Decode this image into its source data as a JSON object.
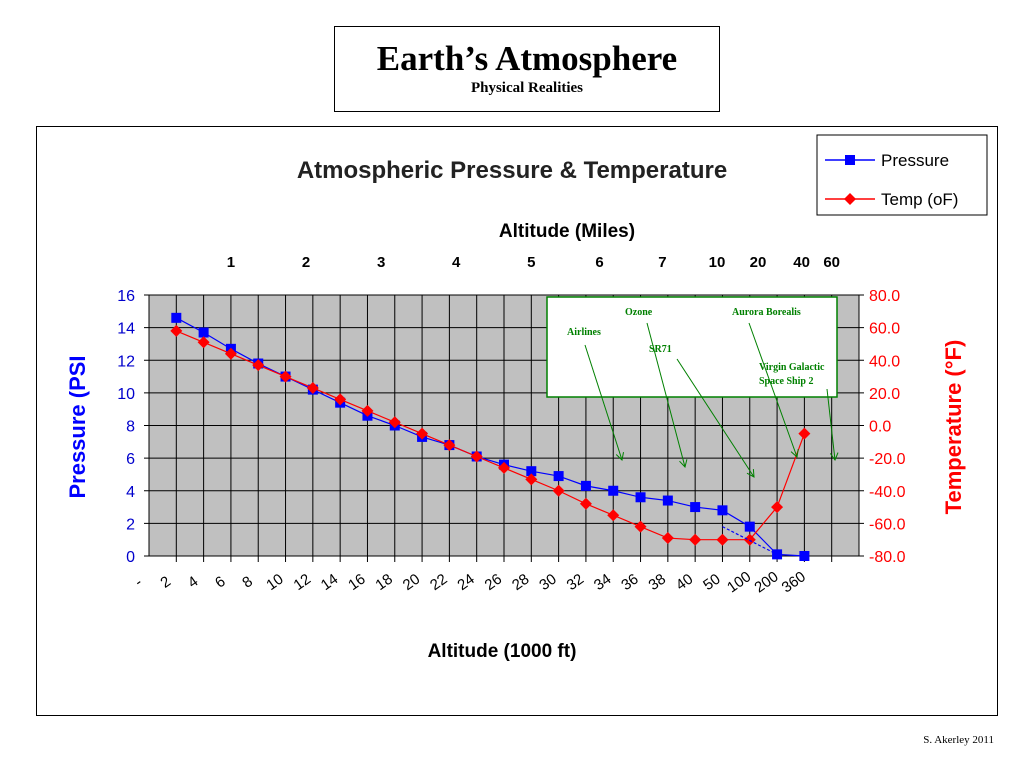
{
  "slide": {
    "title": "Earth’s Atmosphere",
    "subtitle": "Physical Realities",
    "credit": "S. Akerley 2011"
  },
  "chart_data": {
    "type": "line",
    "title": "Atmospheric Pressure & Temperature",
    "xlabel": "Altitude (1000 ft)",
    "x2label": "Altitude (Miles)",
    "ylabel": "Pressure (PSI",
    "y2label": "Temperature (°F)",
    "grid": true,
    "legend_position": "top-right",
    "categories": [
      "-",
      "2",
      "4",
      "6",
      "8",
      "10",
      "12",
      "14",
      "16",
      "18",
      "20",
      "22",
      "24",
      "26",
      "28",
      "30",
      "32",
      "34",
      "36",
      "38",
      "40",
      "50",
      "100",
      "200",
      "360"
    ],
    "x2_ticks": [
      "1",
      "2",
      "3",
      "4",
      "5",
      "6",
      "7",
      "10",
      "20",
      "40",
      "60"
    ],
    "x2_tick_positions": [
      3,
      5.75,
      8.5,
      11.25,
      14,
      16.5,
      18.8,
      20.8,
      22.3,
      23.9,
      25
    ],
    "series": [
      {
        "name": "Pressure",
        "axis": "left",
        "color": "#0000ff",
        "marker": "square",
        "x": [
          1,
          2,
          3,
          4,
          5,
          6,
          7,
          8,
          9,
          10,
          11,
          12,
          13,
          14,
          15,
          16,
          17,
          18,
          19,
          20,
          21,
          22,
          23
        ],
        "values": [
          14.6,
          13.7,
          12.7,
          11.8,
          11.0,
          10.2,
          9.4,
          8.6,
          8.0,
          7.3,
          6.8,
          6.1,
          5.6,
          5.2,
          4.9,
          4.3,
          4.0,
          3.6,
          3.4,
          3.0,
          2.8,
          1.8,
          0.1
        ]
      },
      {
        "name": "Temp (oF)",
        "axis": "right",
        "color": "#ff0000",
        "marker": "diamond",
        "x": [
          1,
          2,
          3,
          4,
          5,
          6,
          7,
          8,
          9,
          10,
          11,
          12,
          13,
          14,
          15,
          16,
          17,
          18,
          19,
          20,
          21,
          22,
          23
        ],
        "values": [
          58.0,
          51.0,
          44.0,
          37.0,
          30.0,
          23.0,
          16.0,
          9.0,
          2.0,
          -5.0,
          -12.0,
          -19.0,
          -26.0,
          -33.0,
          -40.0,
          -48.0,
          -55.0,
          -62.0,
          -69.0,
          -70.0,
          -70.0,
          -70.0,
          -50.0
        ]
      }
    ],
    "extra_points": [
      {
        "series": "Pressure",
        "x": 24,
        "value": 0.0
      },
      {
        "series": "Temp (oF)",
        "x": 24,
        "value": -5.0
      }
    ],
    "y_ticks": [
      0,
      2,
      4,
      6,
      8,
      10,
      12,
      14,
      16
    ],
    "ylim": [
      0,
      16
    ],
    "y2_ticks": [
      "-80.0",
      "-60.0",
      "-40.0",
      "-20.0",
      "0.0",
      "20.0",
      "40.0",
      "60.0",
      "80.0"
    ],
    "y2lim": [
      -80,
      80
    ],
    "annotation_box": {
      "labels": [
        "Ozone",
        "Aurora Borealis",
        "Airlines",
        "SR71",
        "Virgin Galactic",
        "Space Ship 2"
      ],
      "arrow_targets_x": [
        16,
        18,
        20,
        22.3,
        24.5
      ]
    },
    "colors": {
      "plot_background": "#c0c0c0",
      "pressure_axis": "#0000ff",
      "temperature_axis": "#ff0000",
      "annotation_text": "#008000"
    }
  }
}
